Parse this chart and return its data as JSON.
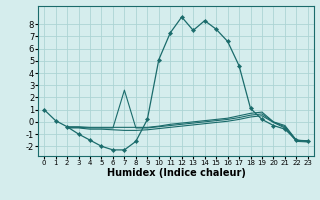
{
  "xlabel": "Humidex (Indice chaleur)",
  "ylabel": "",
  "background_color": "#d5eded",
  "grid_color": "#add4d4",
  "line_color": "#1a6b6b",
  "series_main": {
    "x": [
      0,
      1,
      2,
      3,
      4,
      5,
      6,
      7,
      8,
      9,
      10,
      11,
      12,
      13,
      14,
      15,
      16,
      17,
      18,
      19,
      20,
      21,
      22,
      23
    ],
    "y": [
      1.0,
      0.1,
      -0.4,
      -1.0,
      -1.5,
      -2.0,
      -2.3,
      -2.3,
      -1.6,
      0.2,
      5.1,
      7.3,
      8.6,
      7.5,
      8.3,
      7.6,
      6.6,
      4.6,
      1.1,
      0.2,
      -0.3,
      -0.6,
      -1.5,
      -1.6
    ]
  },
  "series_flat1": {
    "x": [
      2,
      3,
      4,
      5,
      6,
      7,
      8,
      9,
      10,
      11,
      12,
      13,
      14,
      15,
      16,
      17,
      18,
      19,
      20,
      21,
      22,
      23
    ],
    "y": [
      -0.4,
      -0.4,
      -0.45,
      -0.45,
      -0.45,
      -0.45,
      -0.45,
      -0.45,
      -0.35,
      -0.2,
      -0.1,
      0.0,
      0.1,
      0.2,
      0.3,
      0.5,
      0.7,
      0.8,
      0.0,
      -0.3,
      -1.5,
      -1.55
    ]
  },
  "series_flat2": {
    "x": [
      2,
      3,
      4,
      5,
      6,
      7,
      8,
      9,
      10,
      11,
      12,
      13,
      14,
      15,
      16,
      17,
      18,
      19,
      20,
      21,
      22,
      23
    ],
    "y": [
      -0.5,
      -0.5,
      -0.6,
      -0.6,
      -0.65,
      -0.7,
      -0.7,
      -0.65,
      -0.55,
      -0.45,
      -0.35,
      -0.25,
      -0.15,
      -0.05,
      0.05,
      0.2,
      0.4,
      0.5,
      -0.05,
      -0.5,
      -1.6,
      -1.65
    ]
  },
  "series_spike": {
    "x": [
      2,
      3,
      4,
      5,
      6,
      7,
      8,
      9,
      10,
      11,
      12,
      13,
      14,
      15,
      16,
      17,
      18,
      19,
      20,
      21,
      22,
      23
    ],
    "y": [
      -0.45,
      -0.45,
      -0.5,
      -0.5,
      -0.5,
      2.6,
      -0.5,
      -0.5,
      -0.4,
      -0.3,
      -0.2,
      -0.1,
      0.0,
      0.1,
      0.2,
      0.35,
      0.55,
      0.65,
      -0.02,
      -0.4,
      -1.52,
      -1.58
    ]
  },
  "xlim": [
    -0.5,
    23.5
  ],
  "ylim": [
    -2.8,
    9.5
  ],
  "yticks": [
    -2,
    -1,
    0,
    1,
    2,
    3,
    4,
    5,
    6,
    7,
    8
  ],
  "xticks": [
    0,
    1,
    2,
    3,
    4,
    5,
    6,
    7,
    8,
    9,
    10,
    11,
    12,
    13,
    14,
    15,
    16,
    17,
    18,
    19,
    20,
    21,
    22,
    23
  ]
}
